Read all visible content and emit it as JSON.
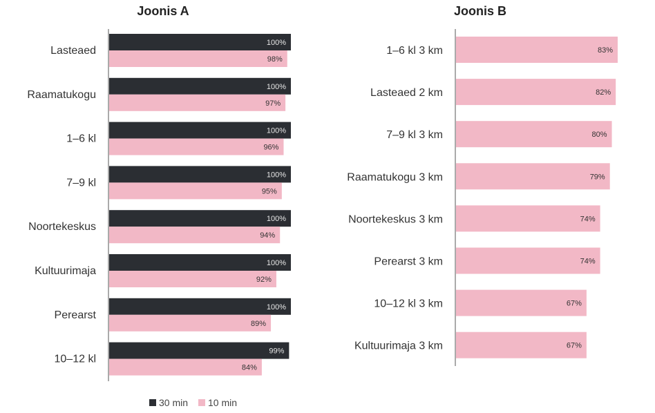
{
  "colors": {
    "dark": "#2b2e33",
    "pink": "#f2b8c6",
    "axis": "#555555"
  },
  "chart_data": [
    {
      "type": "bar",
      "orientation": "horizontal",
      "title": "Joonis A",
      "categories": [
        "Lasteaed",
        "Raamatukogu",
        "1–6 kl",
        "7–9 kl",
        "Noortekeskus",
        "Kultuurimaja",
        "Perearst",
        "10–12 kl"
      ],
      "series": [
        {
          "name": "30 min",
          "values": [
            100,
            100,
            100,
            100,
            100,
            100,
            100,
            99
          ],
          "labels": [
            "100%",
            "100%",
            "100%",
            "100%",
            "100%",
            "100%",
            "100%",
            "99%"
          ],
          "color": "#2b2e33"
        },
        {
          "name": "10 min",
          "values": [
            98,
            97,
            96,
            95,
            94,
            92,
            89,
            84
          ],
          "labels": [
            "98%",
            "97%",
            "96%",
            "95%",
            "94%",
            "92%",
            "89%",
            "84%"
          ],
          "color": "#f2b8c6"
        }
      ],
      "xlim": [
        0,
        100
      ],
      "legend": "bottom",
      "grid": false
    },
    {
      "type": "bar",
      "orientation": "horizontal",
      "title": "Joonis B",
      "categories": [
        "1–6 kl 3 km",
        "Lasteaed 2 km",
        "7–9 kl 3 km",
        "Raamatukogu 3 km",
        "Noortekeskus 3 km",
        "Perearst 3 km",
        "10–12 kl 3 km",
        "Kultuurimaja 3 km"
      ],
      "series": [
        {
          "values": [
            83,
            82,
            80,
            79,
            74,
            74,
            67,
            67
          ],
          "labels": [
            "83%",
            "82%",
            "80%",
            "79%",
            "74%",
            "74%",
            "67%",
            "67%"
          ],
          "color": "#f2b8c6"
        }
      ],
      "xlim": [
        0,
        83
      ],
      "grid": false
    }
  ],
  "legend": {
    "items": [
      {
        "name": "30 min",
        "color": "#2b2e33"
      },
      {
        "name": "10 min",
        "color": "#f2b8c6"
      }
    ]
  }
}
